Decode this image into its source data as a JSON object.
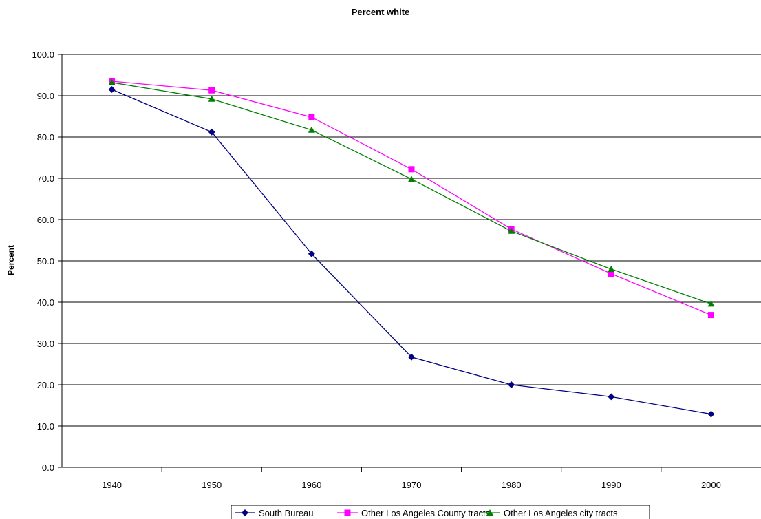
{
  "chart_data": {
    "type": "line",
    "title": "Percent white",
    "xlabel": "",
    "ylabel": "Percent",
    "categories": [
      "1940",
      "1950",
      "1960",
      "1970",
      "1980",
      "1990",
      "2000"
    ],
    "y_tick_labels": [
      "0.0",
      "10.0",
      "20.0",
      "30.0",
      "40.0",
      "50.0",
      "60.0",
      "70.0",
      "80.0",
      "90.0",
      "100.0"
    ],
    "ylim": [
      0,
      100
    ],
    "grid": "horizontal",
    "legend_position": "bottom",
    "series": [
      {
        "name": "South Bureau",
        "color": "#000080",
        "marker": "diamond",
        "values": [
          91.5,
          81.2,
          51.7,
          26.7,
          20.0,
          17.1,
          12.9
        ]
      },
      {
        "name": "Other Los Angeles County tracts",
        "color": "#FF00FF",
        "marker": "square",
        "values": [
          93.5,
          91.3,
          84.8,
          72.2,
          57.7,
          46.9,
          36.9
        ]
      },
      {
        "name": "Other Los Angeles city tracts",
        "color": "#008000",
        "marker": "triangle",
        "values": [
          93.2,
          89.2,
          81.7,
          69.8,
          57.2,
          48.0,
          39.6
        ]
      }
    ]
  }
}
